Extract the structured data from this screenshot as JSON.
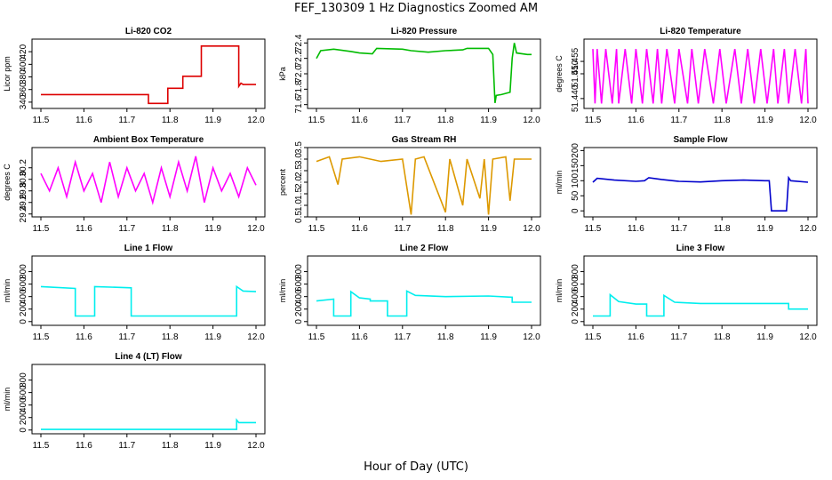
{
  "title": "FEF_130309  1 Hz Diagnostics Zoomed AM",
  "xlabel": "Hour of Day (UTC)",
  "chart_data": [
    {
      "type": "line",
      "title": "Li-820 CO2",
      "ylabel": "Licor ppm",
      "color": "#dd0000",
      "xlim": [
        11.5,
        12.0
      ],
      "xticks": [
        11.5,
        11.6,
        11.7,
        11.8,
        11.9,
        12.0
      ],
      "ylim": [
        330,
        440
      ],
      "yticks": [
        340,
        360,
        380,
        400,
        420
      ],
      "points": [
        [
          11.5,
          352
        ],
        [
          11.75,
          352
        ],
        [
          11.75,
          338
        ],
        [
          11.795,
          338
        ],
        [
          11.795,
          362
        ],
        [
          11.83,
          362
        ],
        [
          11.83,
          381
        ],
        [
          11.873,
          381
        ],
        [
          11.873,
          429
        ],
        [
          11.96,
          429
        ],
        [
          11.96,
          365
        ],
        [
          11.965,
          370
        ],
        [
          11.97,
          368
        ],
        [
          12.0,
          368
        ]
      ]
    },
    {
      "type": "line",
      "title": "Li-820 Pressure",
      "ylabel": "kPa",
      "color": "#00bb00",
      "xlim": [
        11.5,
        12.0
      ],
      "xticks": [
        11.5,
        11.6,
        11.7,
        11.8,
        11.9,
        12.0
      ],
      "ylim": [
        71.55,
        72.45
      ],
      "yticks": [
        71.6,
        71.8,
        72.0,
        72.2,
        72.4
      ],
      "points": [
        [
          11.5,
          72.2
        ],
        [
          11.51,
          72.3
        ],
        [
          11.54,
          72.32
        ],
        [
          11.58,
          72.29
        ],
        [
          11.6,
          72.27
        ],
        [
          11.63,
          72.26
        ],
        [
          11.64,
          72.33
        ],
        [
          11.7,
          72.32
        ],
        [
          11.72,
          72.3
        ],
        [
          11.76,
          72.28
        ],
        [
          11.8,
          72.3
        ],
        [
          11.84,
          72.31
        ],
        [
          11.85,
          72.33
        ],
        [
          11.9,
          72.33
        ],
        [
          11.91,
          72.25
        ],
        [
          11.915,
          71.62
        ],
        [
          11.918,
          71.72
        ],
        [
          11.93,
          71.73
        ],
        [
          11.95,
          71.76
        ],
        [
          11.955,
          72.2
        ],
        [
          11.96,
          72.4
        ],
        [
          11.965,
          72.27
        ],
        [
          11.99,
          72.25
        ],
        [
          12.0,
          72.25
        ]
      ]
    },
    {
      "type": "line",
      "title": "Li-820 Temperature",
      "ylabel": "degrees C",
      "color": "#ff00ff",
      "xlim": [
        11.5,
        12.0
      ],
      "xticks": [
        11.5,
        11.6,
        11.7,
        11.8,
        11.9,
        12.0
      ],
      "ylim": [
        51.436,
        51.464
      ],
      "yticks": [
        51.44,
        51.45,
        51.455
      ],
      "points": [
        [
          11.5,
          51.46
        ],
        [
          11.505,
          51.438
        ],
        [
          11.51,
          51.46
        ],
        [
          11.52,
          51.438
        ],
        [
          11.53,
          51.46
        ],
        [
          11.545,
          51.438
        ],
        [
          11.555,
          51.46
        ],
        [
          11.56,
          51.438
        ],
        [
          11.575,
          51.46
        ],
        [
          11.59,
          51.438
        ],
        [
          11.6,
          51.46
        ],
        [
          11.615,
          51.438
        ],
        [
          11.625,
          51.46
        ],
        [
          11.64,
          51.438
        ],
        [
          11.65,
          51.46
        ],
        [
          11.66,
          51.438
        ],
        [
          11.672,
          51.46
        ],
        [
          11.69,
          51.438
        ],
        [
          11.7,
          51.46
        ],
        [
          11.72,
          51.438
        ],
        [
          11.73,
          51.46
        ],
        [
          11.745,
          51.438
        ],
        [
          11.76,
          51.46
        ],
        [
          11.78,
          51.438
        ],
        [
          11.795,
          51.46
        ],
        [
          11.81,
          51.438
        ],
        [
          11.83,
          51.46
        ],
        [
          11.845,
          51.438
        ],
        [
          11.86,
          51.46
        ],
        [
          11.875,
          51.438
        ],
        [
          11.89,
          51.46
        ],
        [
          11.905,
          51.438
        ],
        [
          11.92,
          51.46
        ],
        [
          11.93,
          51.438
        ],
        [
          11.945,
          51.46
        ],
        [
          11.955,
          51.438
        ],
        [
          11.97,
          51.46
        ],
        [
          11.985,
          51.438
        ],
        [
          11.995,
          51.46
        ],
        [
          12.0,
          51.438
        ]
      ]
    },
    {
      "type": "line",
      "title": "Ambient Box Temperature",
      "ylabel": "degrees C",
      "color": "#ff00ff",
      "xlim": [
        11.5,
        12.0
      ],
      "xticks": [
        11.5,
        11.6,
        11.7,
        11.8,
        11.9,
        12.0
      ],
      "ylim": [
        29.35,
        30.55
      ],
      "yticks": [
        29.4,
        29.6,
        29.8,
        30.0,
        30.2
      ],
      "points": [
        [
          11.5,
          30.1
        ],
        [
          11.52,
          29.8
        ],
        [
          11.54,
          30.2
        ],
        [
          11.56,
          29.7
        ],
        [
          11.58,
          30.3
        ],
        [
          11.6,
          29.8
        ],
        [
          11.62,
          30.1
        ],
        [
          11.64,
          29.6
        ],
        [
          11.66,
          30.3
        ],
        [
          11.68,
          29.7
        ],
        [
          11.7,
          30.2
        ],
        [
          11.72,
          29.8
        ],
        [
          11.74,
          30.1
        ],
        [
          11.76,
          29.6
        ],
        [
          11.78,
          30.2
        ],
        [
          11.8,
          29.7
        ],
        [
          11.82,
          30.3
        ],
        [
          11.84,
          29.8
        ],
        [
          11.86,
          30.4
        ],
        [
          11.88,
          29.6
        ],
        [
          11.9,
          30.2
        ],
        [
          11.92,
          29.8
        ],
        [
          11.94,
          30.1
        ],
        [
          11.96,
          29.7
        ],
        [
          11.98,
          30.2
        ],
        [
          12.0,
          29.9
        ]
      ]
    },
    {
      "type": "line",
      "title": "Gas Stream RH",
      "ylabel": "percent",
      "color": "#dd9900",
      "xlim": [
        11.5,
        12.0
      ],
      "xticks": [
        11.5,
        11.6,
        11.7,
        11.8,
        11.9,
        12.0
      ],
      "ylim": [
        0.5,
        3.5
      ],
      "yticks": [
        0.5,
        1.0,
        1.5,
        2.0,
        2.5,
        3.0,
        3.5
      ],
      "points": [
        [
          11.5,
          2.9
        ],
        [
          11.53,
          3.1
        ],
        [
          11.55,
          1.9
        ],
        [
          11.56,
          3.0
        ],
        [
          11.6,
          3.1
        ],
        [
          11.65,
          2.9
        ],
        [
          11.7,
          3.0
        ],
        [
          11.72,
          0.6
        ],
        [
          11.73,
          3.0
        ],
        [
          11.75,
          3.1
        ],
        [
          11.8,
          0.7
        ],
        [
          11.81,
          3.0
        ],
        [
          11.84,
          1.0
        ],
        [
          11.85,
          3.0
        ],
        [
          11.88,
          1.3
        ],
        [
          11.89,
          3.0
        ],
        [
          11.9,
          0.6
        ],
        [
          11.91,
          3.0
        ],
        [
          11.94,
          3.1
        ],
        [
          11.95,
          1.2
        ],
        [
          11.96,
          3.0
        ],
        [
          12.0,
          3.0
        ]
      ]
    },
    {
      "type": "line",
      "title": "Sample Flow",
      "ylabel": "ml/min",
      "color": "#0000cc",
      "xlim": [
        11.5,
        12.0
      ],
      "xticks": [
        11.5,
        11.6,
        11.7,
        11.8,
        11.9,
        12.0
      ],
      "ylim": [
        -20,
        210
      ],
      "yticks": [
        0,
        50,
        100,
        150,
        200
      ],
      "points": [
        [
          11.5,
          95
        ],
        [
          11.51,
          108
        ],
        [
          11.55,
          102
        ],
        [
          11.6,
          98
        ],
        [
          11.62,
          100
        ],
        [
          11.63,
          110
        ],
        [
          11.66,
          104
        ],
        [
          11.7,
          98
        ],
        [
          11.75,
          96
        ],
        [
          11.8,
          100
        ],
        [
          11.85,
          102
        ],
        [
          11.9,
          100
        ],
        [
          11.91,
          100
        ],
        [
          11.915,
          0
        ],
        [
          11.95,
          0
        ],
        [
          11.955,
          110
        ],
        [
          11.96,
          100
        ],
        [
          12.0,
          95
        ]
      ]
    },
    {
      "type": "line",
      "title": "Line 1 Flow",
      "ylabel": "ml/min",
      "color": "#00eeee",
      "xlim": [
        11.5,
        12.0
      ],
      "xticks": [
        11.5,
        11.6,
        11.7,
        11.8,
        11.9,
        12.0
      ],
      "ylim": [
        -60,
        1050
      ],
      "yticks": [
        0,
        200,
        400,
        600,
        800
      ],
      "points": [
        [
          11.5,
          560
        ],
        [
          11.58,
          530
        ],
        [
          11.58,
          90
        ],
        [
          11.625,
          90
        ],
        [
          11.625,
          560
        ],
        [
          11.71,
          540
        ],
        [
          11.71,
          90
        ],
        [
          11.955,
          90
        ],
        [
          11.955,
          560
        ],
        [
          11.97,
          490
        ],
        [
          12.0,
          480
        ]
      ]
    },
    {
      "type": "line",
      "title": "Line 2 Flow",
      "ylabel": "ml/min",
      "color": "#00eeee",
      "xlim": [
        11.5,
        12.0
      ],
      "xticks": [
        11.5,
        11.6,
        11.7,
        11.8,
        11.9,
        12.0
      ],
      "ylim": [
        -60,
        1050
      ],
      "yticks": [
        0,
        200,
        400,
        600,
        800
      ],
      "points": [
        [
          11.5,
          330
        ],
        [
          11.54,
          360
        ],
        [
          11.54,
          90
        ],
        [
          11.58,
          90
        ],
        [
          11.58,
          480
        ],
        [
          11.6,
          380
        ],
        [
          11.625,
          360
        ],
        [
          11.625,
          330
        ],
        [
          11.665,
          330
        ],
        [
          11.665,
          90
        ],
        [
          11.71,
          90
        ],
        [
          11.71,
          490
        ],
        [
          11.73,
          420
        ],
        [
          11.8,
          400
        ],
        [
          11.9,
          410
        ],
        [
          11.955,
          390
        ],
        [
          11.955,
          310
        ],
        [
          12.0,
          310
        ]
      ]
    },
    {
      "type": "line",
      "title": "Line 3 Flow",
      "ylabel": "ml/min",
      "color": "#00eeee",
      "xlim": [
        11.5,
        12.0
      ],
      "xticks": [
        11.5,
        11.6,
        11.7,
        11.8,
        11.9,
        12.0
      ],
      "ylim": [
        -60,
        1050
      ],
      "yticks": [
        0,
        200,
        400,
        600,
        800
      ],
      "points": [
        [
          11.5,
          90
        ],
        [
          11.54,
          90
        ],
        [
          11.54,
          430
        ],
        [
          11.56,
          320
        ],
        [
          11.6,
          280
        ],
        [
          11.625,
          280
        ],
        [
          11.625,
          90
        ],
        [
          11.665,
          90
        ],
        [
          11.665,
          420
        ],
        [
          11.69,
          310
        ],
        [
          11.75,
          290
        ],
        [
          11.85,
          290
        ],
        [
          11.95,
          290
        ],
        [
          11.955,
          290
        ],
        [
          11.955,
          200
        ],
        [
          12.0,
          200
        ]
      ]
    },
    {
      "type": "line",
      "title": "Line 4 (LT) Flow",
      "ylabel": "ml/min",
      "color": "#00eeee",
      "xlim": [
        11.5,
        12.0
      ],
      "xticks": [
        11.5,
        11.6,
        11.7,
        11.8,
        11.9,
        12.0
      ],
      "ylim": [
        -60,
        1050
      ],
      "yticks": [
        0,
        200,
        400,
        600,
        800
      ],
      "points": [
        [
          11.5,
          10
        ],
        [
          11.7,
          10
        ],
        [
          11.9,
          10
        ],
        [
          11.955,
          10
        ],
        [
          11.955,
          160
        ],
        [
          11.96,
          120
        ],
        [
          12.0,
          120
        ]
      ]
    }
  ]
}
